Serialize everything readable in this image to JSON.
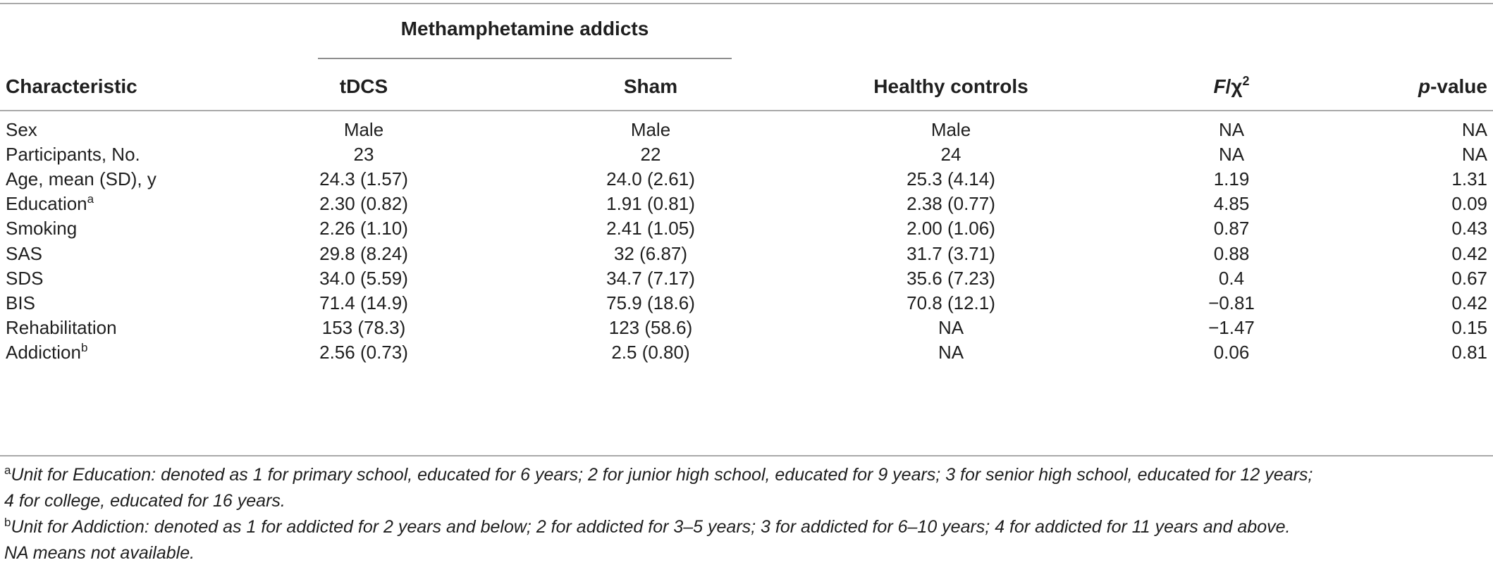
{
  "table": {
    "group_header": "Methamphetamine addicts",
    "columns": {
      "characteristic": "Characteristic",
      "tdcs": "tDCS",
      "sham": "Sham",
      "healthy": "Healthy controls",
      "stat_main": "F",
      "stat_sep": "/χ",
      "stat_sup": "2",
      "pvalue_italic": "p",
      "pvalue_rest": "-value"
    },
    "rows": [
      {
        "label": "Sex",
        "sup": "",
        "tdcs": "Male",
        "sham": "Male",
        "healthy": "Male",
        "stat": "NA",
        "p": "NA"
      },
      {
        "label": "Participants, No.",
        "sup": "",
        "tdcs": "23",
        "sham": "22",
        "healthy": "24",
        "stat": "NA",
        "p": "NA"
      },
      {
        "label": "Age, mean (SD), y",
        "sup": "",
        "tdcs": "24.3 (1.57)",
        "sham": "24.0 (2.61)",
        "healthy": "25.3 (4.14)",
        "stat": "1.19",
        "p": "1.31"
      },
      {
        "label": "Education",
        "sup": "a",
        "tdcs": "2.30 (0.82)",
        "sham": "1.91 (0.81)",
        "healthy": "2.38 (0.77)",
        "stat": "4.85",
        "p": "0.09"
      },
      {
        "label": "Smoking",
        "sup": "",
        "tdcs": "2.26 (1.10)",
        "sham": "2.41 (1.05)",
        "healthy": "2.00 (1.06)",
        "stat": "0.87",
        "p": "0.43"
      },
      {
        "label": "SAS",
        "sup": "",
        "tdcs": "29.8 (8.24)",
        "sham": "32 (6.87)",
        "healthy": "31.7 (3.71)",
        "stat": "0.88",
        "p": "0.42"
      },
      {
        "label": "SDS",
        "sup": "",
        "tdcs": "34.0 (5.59)",
        "sham": "34.7 (7.17)",
        "healthy": "35.6 (7.23)",
        "stat": "0.4",
        "p": "0.67"
      },
      {
        "label": "BIS",
        "sup": "",
        "tdcs": "71.4 (14.9)",
        "sham": "75.9 (18.6)",
        "healthy": "70.8 (12.1)",
        "stat": "−0.81",
        "p": "0.42"
      },
      {
        "label": "Rehabilitation",
        "sup": "",
        "tdcs": "153 (78.3)",
        "sham": "123 (58.6)",
        "healthy": "NA",
        "stat": "−1.47",
        "p": "0.15"
      },
      {
        "label": "Addiction",
        "sup": "b",
        "tdcs": "2.56 (0.73)",
        "sham": "2.5 (0.80)",
        "healthy": "NA",
        "stat": "0.06",
        "p": "0.81"
      }
    ]
  },
  "footnotes": {
    "a_marker": "a",
    "a_line1": "Unit for Education: denoted as 1 for primary school, educated for 6 years; 2 for junior high school, educated for 9 years; 3 for senior high school, educated for 12 years;",
    "a_line2": "4 for college, educated for 16 years.",
    "b_marker": "b",
    "b_line1": "Unit for Addiction: denoted as 1 for addicted for 2 years and below; 2 for addicted for 3–5 years; 3 for addicted for 6–10 years; 4 for addicted for 11 years and above.",
    "na_note": "NA means not available."
  }
}
